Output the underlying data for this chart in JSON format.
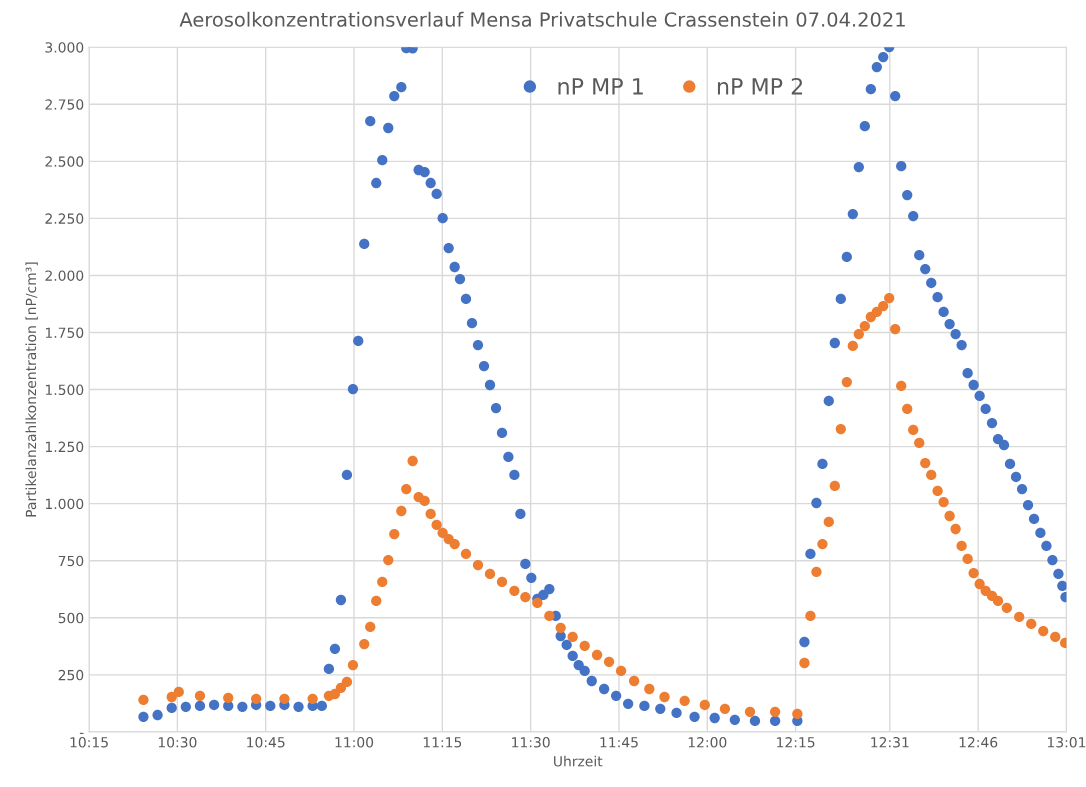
{
  "chart_data": {
    "type": "scatter",
    "title": "Aerosolkonzentrationsverlauf Mensa Privatschule Crassenstein 07.04.2021",
    "xlabel": "Uhrzeit",
    "ylabel": "Partikelanzahlkonzentration [nP/cm³]",
    "xlim": [
      10.25,
      13.0167
    ],
    "xticks": [
      {
        "value": 10.25,
        "label": "10:15"
      },
      {
        "value": 10.5,
        "label": "10:30"
      },
      {
        "value": 10.75,
        "label": "10:45"
      },
      {
        "value": 11.0,
        "label": "11:00"
      },
      {
        "value": 11.25,
        "label": "11:15"
      },
      {
        "value": 11.5,
        "label": "11:30"
      },
      {
        "value": 11.75,
        "label": "11:45"
      },
      {
        "value": 12.0,
        "label": "12:00"
      },
      {
        "value": 12.25,
        "label": "12:15"
      },
      {
        "value": 12.5167,
        "label": "12:31"
      },
      {
        "value": 12.7667,
        "label": "12:46"
      },
      {
        "value": 13.0167,
        "label": "13:01"
      }
    ],
    "ylim": [
      0,
      3000
    ],
    "yticks": [
      {
        "value": 0,
        "label": "-"
      },
      250,
      500,
      750,
      {
        "value": 1000,
        "label": "1.000"
      },
      {
        "value": 1250,
        "label": "1.250"
      },
      {
        "value": 1500,
        "label": "1.500"
      },
      {
        "value": 1750,
        "label": "1.750"
      },
      {
        "value": 2000,
        "label": "2.000"
      },
      {
        "value": 2250,
        "label": "2.250"
      },
      {
        "value": 2500,
        "label": "2.500"
      },
      {
        "value": 2750,
        "label": "2.750"
      },
      {
        "value": 3000,
        "label": "3.000"
      }
    ],
    "grid": true,
    "legend": "top",
    "marker": "circle",
    "series": [
      {
        "name": "nP MP 1",
        "color": "#4472c4",
        "x": [
          10.404,
          10.444,
          10.484,
          10.524,
          10.564,
          10.604,
          10.644,
          10.684,
          10.723,
          10.763,
          10.803,
          10.843,
          10.883,
          10.909,
          10.929,
          10.946,
          10.963,
          10.98,
          10.997,
          11.012,
          11.029,
          11.046,
          11.063,
          11.08,
          11.097,
          11.114,
          11.134,
          11.148,
          11.166,
          11.183,
          11.2,
          11.217,
          11.234,
          11.251,
          11.268,
          11.285,
          11.3,
          11.317,
          11.334,
          11.351,
          11.368,
          11.385,
          11.402,
          11.419,
          11.437,
          11.454,
          11.471,
          11.485,
          11.502,
          11.519,
          11.536,
          11.553,
          11.571,
          11.585,
          11.602,
          11.619,
          11.636,
          11.653,
          11.673,
          11.708,
          11.742,
          11.776,
          11.822,
          11.867,
          11.913,
          11.964,
          12.021,
          12.078,
          12.135,
          12.192,
          12.255,
          12.275,
          12.292,
          12.309,
          12.326,
          12.344,
          12.361,
          12.378,
          12.395,
          12.412,
          12.429,
          12.446,
          12.463,
          12.48,
          12.498,
          12.515,
          12.532,
          12.549,
          12.566,
          12.583,
          12.6,
          12.617,
          12.634,
          12.652,
          12.669,
          12.686,
          12.703,
          12.72,
          12.737,
          12.754,
          12.771,
          12.788,
          12.806,
          12.823,
          12.84,
          12.857,
          12.874,
          12.891,
          12.908,
          12.925,
          12.943,
          12.96,
          12.977,
          12.994,
          13.005,
          13.014
        ],
        "values": [
          66,
          74,
          105,
          110,
          114,
          118,
          114,
          110,
          118,
          114,
          118,
          110,
          114,
          114,
          276,
          364,
          578,
          1126,
          1502,
          1713,
          2138,
          2676,
          2405,
          2505,
          2646,
          2786,
          2825,
          2996,
          2995,
          2462,
          2453,
          2405,
          2357,
          2251,
          2120,
          2037,
          1984,
          1897,
          1791,
          1695,
          1603,
          1520,
          1419,
          1310,
          1205,
          1126,
          955,
          736,
          675,
          583,
          600,
          626,
          508,
          420,
          381,
          333,
          293,
          267,
          223,
          188,
          158,
          123,
          114,
          101,
          83,
          66,
          61,
          53,
          48,
          48,
          48,
          394,
          780,
          1003,
          1174,
          1450,
          1704,
          1897,
          2081,
          2269,
          2475,
          2654,
          2816,
          2913,
          2957,
          3000,
          2786,
          2479,
          2352,
          2260,
          2089,
          2028,
          1967,
          1905,
          1840,
          1787,
          1743,
          1695,
          1572,
          1520,
          1472,
          1415,
          1353,
          1283,
          1257,
          1174,
          1117,
          1064,
          994,
          933,
          872,
          815,
          753,
          692,
          640,
          591
        ]
      },
      {
        "name": "nP MP 2",
        "color": "#ed7d31",
        "x": [
          10.404,
          10.484,
          10.504,
          10.564,
          10.644,
          10.723,
          10.803,
          10.883,
          10.929,
          10.946,
          10.963,
          10.98,
          10.997,
          11.029,
          11.046,
          11.063,
          11.08,
          11.097,
          11.114,
          11.134,
          11.148,
          11.166,
          11.183,
          11.2,
          11.217,
          11.234,
          11.251,
          11.268,
          11.285,
          11.317,
          11.351,
          11.385,
          11.419,
          11.454,
          11.485,
          11.519,
          11.553,
          11.585,
          11.619,
          11.653,
          11.688,
          11.722,
          11.756,
          11.793,
          11.836,
          11.879,
          11.936,
          11.993,
          12.05,
          12.121,
          12.192,
          12.255,
          12.275,
          12.292,
          12.309,
          12.326,
          12.344,
          12.361,
          12.378,
          12.395,
          12.412,
          12.429,
          12.446,
          12.463,
          12.48,
          12.498,
          12.515,
          12.532,
          12.549,
          12.566,
          12.583,
          12.6,
          12.617,
          12.634,
          12.652,
          12.669,
          12.686,
          12.703,
          12.72,
          12.737,
          12.754,
          12.771,
          12.788,
          12.806,
          12.823,
          12.848,
          12.883,
          12.917,
          12.951,
          12.985,
          13.013
        ],
        "values": [
          140,
          153,
          175,
          158,
          149,
          145,
          145,
          145,
          158,
          166,
          193,
          219,
          293,
          385,
          460,
          574,
          657,
          753,
          867,
          968,
          1064,
          1187,
          1029,
          1012,
          955,
          907,
          872,
          845,
          823,
          780,
          731,
          692,
          657,
          618,
          591,
          565,
          508,
          456,
          416,
          377,
          337,
          307,
          267,
          223,
          188,
          153,
          136,
          118,
          101,
          88,
          88,
          79,
          302,
          508,
          701,
          823,
          920,
          1078,
          1327,
          1533,
          1691,
          1743,
          1778,
          1818,
          1840,
          1866,
          1901,
          1765,
          1516,
          1415,
          1323,
          1266,
          1178,
          1126,
          1056,
          1007,
          946,
          889,
          815,
          758,
          696,
          648,
          618,
          596,
          574,
          543,
          504,
          473,
          442,
          416,
          390
        ]
      }
    ]
  }
}
